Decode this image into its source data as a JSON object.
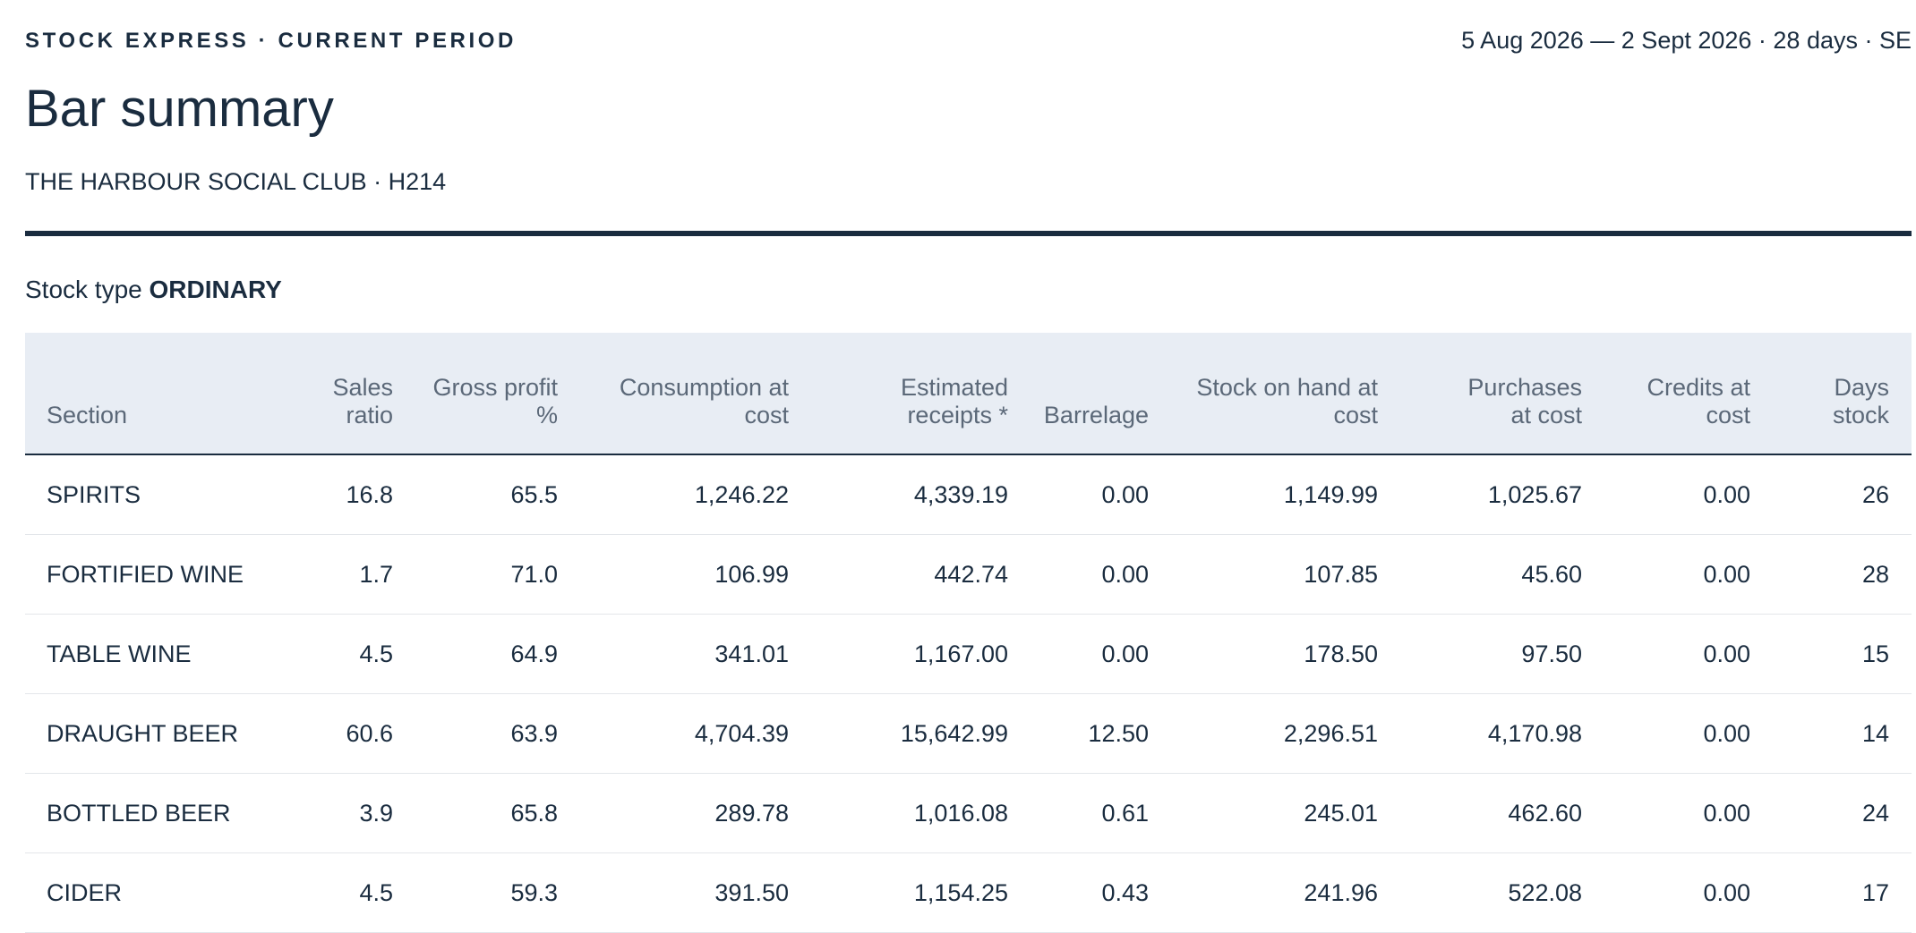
{
  "header": {
    "brand": "STOCK EXPRESS · CURRENT PERIOD",
    "period": "5 Aug 2026 — 2 Sept 2026 · 28 days · SE",
    "title": "Bar summary",
    "venue": "THE HARBOUR SOCIAL CLUB · H214"
  },
  "stock_type": {
    "label": "Stock type",
    "value": "ORDINARY"
  },
  "table": {
    "columns": [
      "Section",
      "Sales ratio",
      "Gross profit %",
      "Consumption at cost",
      "Estimated receipts *",
      "Barrelage",
      "Stock on hand at cost",
      "Purchases at cost",
      "Credits at cost",
      "Days stock"
    ],
    "rows": [
      [
        "SPIRITS",
        "16.8",
        "65.5",
        "1,246.22",
        "4,339.19",
        "0.00",
        "1,149.99",
        "1,025.67",
        "0.00",
        "26"
      ],
      [
        "FORTIFIED WINE",
        "1.7",
        "71.0",
        "106.99",
        "442.74",
        "0.00",
        "107.85",
        "45.60",
        "0.00",
        "28"
      ],
      [
        "TABLE WINE",
        "4.5",
        "64.9",
        "341.01",
        "1,167.00",
        "0.00",
        "178.50",
        "97.50",
        "0.00",
        "15"
      ],
      [
        "DRAUGHT BEER",
        "60.6",
        "63.9",
        "4,704.39",
        "15,642.99",
        "12.50",
        "2,296.51",
        "4,170.98",
        "0.00",
        "14"
      ],
      [
        "BOTTLED BEER",
        "3.9",
        "65.8",
        "289.78",
        "1,016.08",
        "0.61",
        "245.01",
        "462.60",
        "0.00",
        "24"
      ],
      [
        "CIDER",
        "4.5",
        "59.3",
        "391.50",
        "1,154.25",
        "0.43",
        "241.96",
        "522.08",
        "0.00",
        "17"
      ]
    ]
  }
}
